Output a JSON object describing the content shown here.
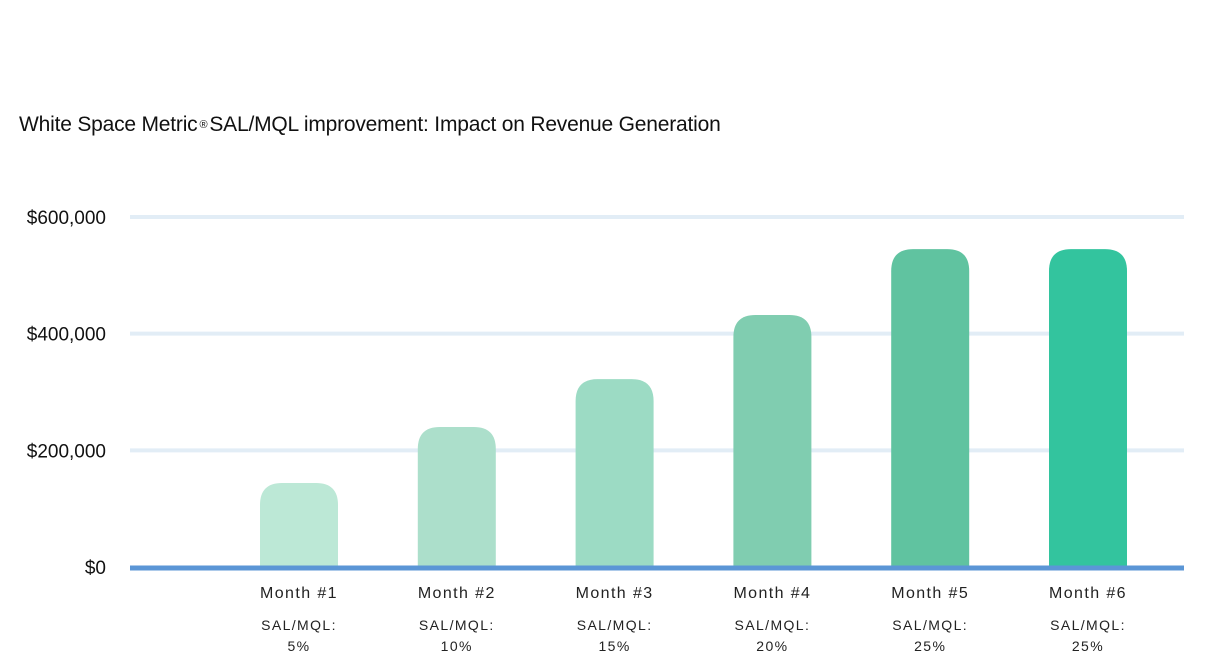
{
  "title": {
    "main": "White Space Metric",
    "mark": "®",
    "rest": "SAL/MQL improvement: Impact on Revenue Generation"
  },
  "chart_data": {
    "type": "bar",
    "title": "White Space Metric ® SAL/MQL improvement: Impact on Revenue Generation",
    "categories": [
      "Month #1",
      "Month #2",
      "Month #3",
      "Month #4",
      "Month #5",
      "Month #6"
    ],
    "sublabels": [
      [
        "SAL/MQL:",
        "5%"
      ],
      [
        "SAL/MQL:",
        "10%"
      ],
      [
        "SAL/MQL:",
        "15%"
      ],
      [
        "SAL/MQL:",
        "20%"
      ],
      [
        "SAL/MQL:",
        "25%"
      ],
      [
        "SAL/MQL:",
        "25%"
      ]
    ],
    "values": [
      144000,
      240000,
      322000,
      432000,
      545000,
      545000
    ],
    "ylim": [
      0,
      600000
    ],
    "yticks": [
      {
        "value": 0,
        "label": "$0"
      },
      {
        "value": 200000,
        "label": "$200,000"
      },
      {
        "value": 400000,
        "label": "$400,000"
      },
      {
        "value": 600000,
        "label": "$600,000"
      }
    ],
    "xlabel": "",
    "ylabel": "",
    "grid": true,
    "legend": "none",
    "colors": {
      "bars": [
        "#bce8d6",
        "#acdfcb",
        "#9cdbc4",
        "#80cdb0",
        "#60c3a0",
        "#33c49e"
      ],
      "grid": "#e2edf6",
      "baseline": "#5b96d6"
    }
  }
}
